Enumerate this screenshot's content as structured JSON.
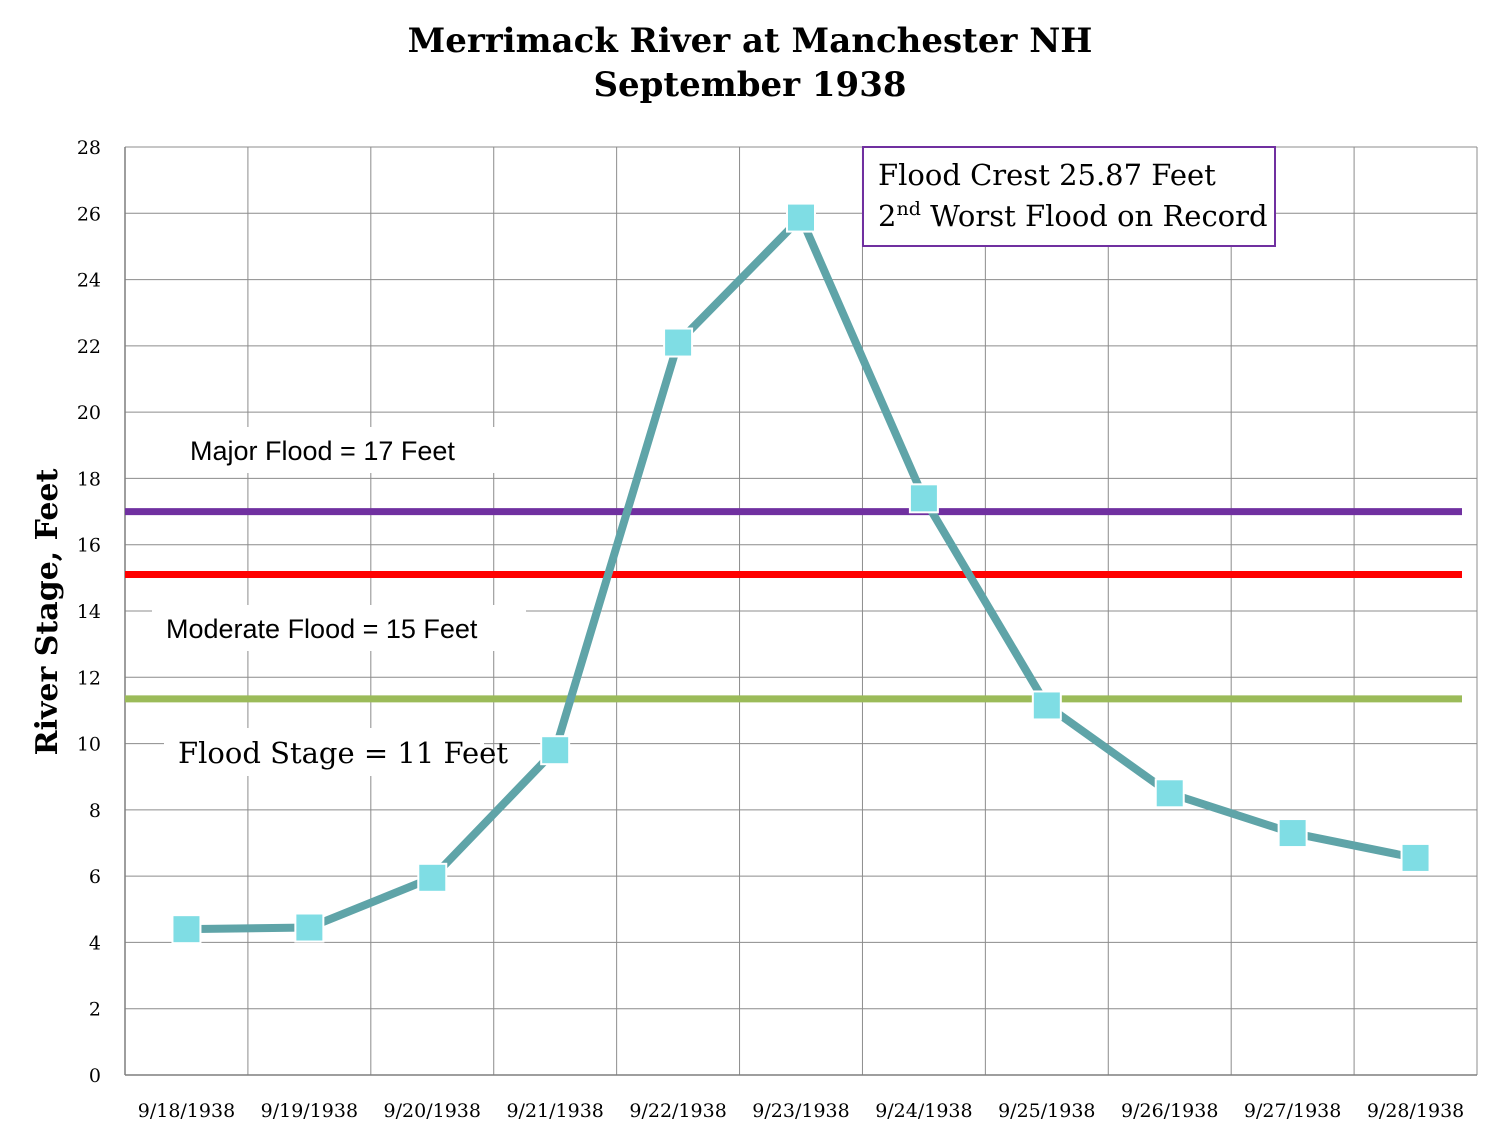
{
  "chart_data": {
    "type": "line",
    "title": [
      "Merrimack River at Manchester NH",
      "September 1938"
    ],
    "xlabel": "",
    "ylabel": "River Stage, Feet",
    "ylim": [
      0,
      28
    ],
    "yticks": [
      0,
      2,
      4,
      6,
      8,
      10,
      12,
      14,
      16,
      18,
      20,
      22,
      24,
      26,
      28
    ],
    "grid": true,
    "categories": [
      "9/18/1938",
      "9/19/1938",
      "9/20/1938",
      "9/21/1938",
      "9/22/1938",
      "9/23/1938",
      "9/24/1938",
      "9/25/1938",
      "9/26/1938",
      "9/27/1938",
      "9/28/1938"
    ],
    "series": [
      {
        "color": "#5fa4a8",
        "marker_color": "#7fdde4",
        "values": [
          4.4,
          4.45,
          5.95,
          9.8,
          22.1,
          25.87,
          17.4,
          11.15,
          8.5,
          7.3,
          6.55
        ]
      }
    ],
    "thresholds": [
      {
        "label": "Major Flood = 17 Feet",
        "value": 17,
        "color": "#7030a0"
      },
      {
        "label": "Moderate Flood = 15 Feet",
        "value": 15.1,
        "color": "#ff0000"
      },
      {
        "label": "Flood Stage = 11 Feet",
        "value": 11.35,
        "color": "#9bbb59"
      }
    ],
    "annotation": {
      "line1": "Flood Crest 25.87 Feet",
      "line2_prefix": "2",
      "line2_sup": "nd",
      "line2_rest": " Worst Flood on Record",
      "border_color": "#7030a0"
    }
  }
}
